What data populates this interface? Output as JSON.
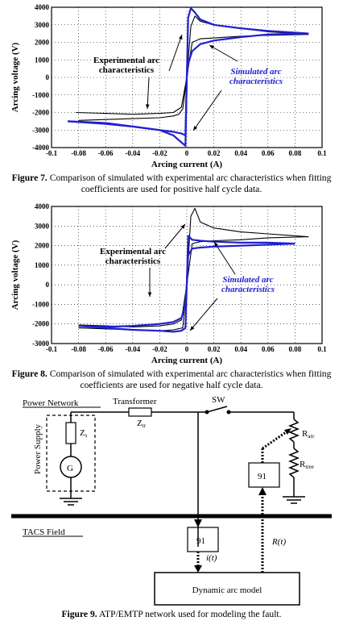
{
  "figure7": {
    "label": "Figure 7.",
    "caption": "Comparison of simulated with experimental arc characteristics when fitting coefficients are used for positive half cycle data.",
    "chart_data": {
      "type": "line",
      "xlabel": "Arcing current (A)",
      "ylabel": "Arcing voltage (V)",
      "xlim": [
        -0.1,
        0.1
      ],
      "ylim": [
        -4000,
        4000
      ],
      "xticks": [
        "-0.1",
        "-0.08",
        "-0.06",
        "-0.04",
        "-0.02",
        "0",
        "0.02",
        "0.04",
        "0.06",
        "0.08",
        "0.1"
      ],
      "yticks": [
        "4000",
        "3000",
        "2000",
        "1000",
        "0",
        "-1000",
        "-2000",
        "-3000",
        "-4000"
      ],
      "grid": true,
      "annotations": [
        {
          "text_lines": [
            "Experimental arc",
            "characteristics"
          ],
          "color": "#000000"
        },
        {
          "text_lines": [
            "Simulated arc",
            "characteristics"
          ],
          "color": "#2020d0"
        }
      ],
      "series": [
        {
          "color": "#000000",
          "x": [
            -0.082,
            -0.06,
            -0.04,
            -0.02,
            -0.01,
            -0.004,
            0,
            0.003,
            0.006,
            0.01,
            0.02,
            0.04,
            0.06,
            0.08,
            0.09
          ],
          "y": [
            -2000,
            -2050,
            -2100,
            -2050,
            -2000,
            -1700,
            0,
            2900,
            3500,
            3200,
            3000,
            2800,
            2600,
            2500,
            2450
          ]
        },
        {
          "color": "#000000",
          "x": [
            0.09,
            0.06,
            0.04,
            0.02,
            0.01,
            0.004,
            0,
            -0.003,
            -0.006,
            -0.01,
            -0.02,
            -0.04,
            -0.06,
            -0.08
          ],
          "y": [
            2450,
            2400,
            2350,
            2250,
            2200,
            2000,
            0,
            -1800,
            -2100,
            -2200,
            -2300,
            -2350,
            -2400,
            -2450
          ]
        },
        {
          "color": "#2020d0",
          "x": [
            -0.088,
            -0.06,
            -0.04,
            -0.02,
            -0.01,
            -0.004,
            -0.001,
            0,
            0.001,
            0.003,
            0.006,
            0.01,
            0.02,
            0.04,
            0.06,
            0.08,
            0.09
          ],
          "y": [
            -2500,
            -2600,
            -2800,
            -3000,
            -3100,
            -3200,
            -3300,
            0,
            3400,
            3950,
            3700,
            3300,
            3000,
            2800,
            2650,
            2550,
            2500
          ]
        },
        {
          "color": "#2020d0",
          "x": [
            0.09,
            0.06,
            0.04,
            0.02,
            0.01,
            0.004,
            0.001,
            0,
            -0.001,
            -0.004,
            -0.01,
            -0.02,
            -0.04,
            -0.06,
            -0.088
          ],
          "y": [
            2500,
            2450,
            2300,
            2100,
            1900,
            1500,
            800,
            0,
            -3900,
            -3700,
            -3300,
            -3000,
            -2800,
            -2650,
            -2500
          ]
        }
      ]
    }
  },
  "figure8": {
    "label": "Figure 8.",
    "caption": "Comparison of simulated with experimental arc characteristics when fitting coefficients are used for negative half cycle data.",
    "chart_data": {
      "type": "line",
      "xlabel": "Arcing current (A)",
      "ylabel": "Arcing voltage (V)",
      "xlim": [
        -0.1,
        0.1
      ],
      "ylim": [
        -3000,
        4000
      ],
      "xticks": [
        "-0.1",
        "-0.08",
        "-0.06",
        "-0.04",
        "-0.02",
        "0",
        "0.02",
        "0.04",
        "0.06",
        "0.08",
        "0.1"
      ],
      "yticks": [
        "4000",
        "3000",
        "2000",
        "1000",
        "0",
        "-1000",
        "-2000",
        "-3000"
      ],
      "grid": true,
      "annotations": [
        {
          "text_lines": [
            "Experimental arc",
            "characteristics"
          ],
          "color": "#000000"
        },
        {
          "text_lines": [
            "Simulated arc",
            "characteristics"
          ],
          "color": "#2020d0"
        }
      ],
      "series": [
        {
          "color": "#000000",
          "x": [
            -0.08,
            -0.06,
            -0.04,
            -0.02,
            -0.01,
            -0.004,
            0,
            0.003,
            0.006,
            0.01,
            0.02,
            0.04,
            0.06,
            0.08,
            0.09
          ],
          "y": [
            -2050,
            -2100,
            -2150,
            -2100,
            -2000,
            -1800,
            0,
            3500,
            3900,
            3200,
            2900,
            2700,
            2600,
            2500,
            2450
          ]
        },
        {
          "color": "#000000",
          "x": [
            0.09,
            0.06,
            0.04,
            0.02,
            0.01,
            0.004,
            0,
            -0.003,
            -0.01,
            -0.02,
            -0.04,
            -0.06,
            -0.08
          ],
          "y": [
            2450,
            2400,
            2300,
            2250,
            2200,
            2100,
            0,
            -2200,
            -2300,
            -2350,
            -2300,
            -2250,
            -2200
          ]
        },
        {
          "color": "#2020d0",
          "x": [
            -0.08,
            -0.06,
            -0.04,
            -0.02,
            -0.01,
            -0.004,
            -0.001,
            0,
            0.001,
            0.004,
            0.01,
            0.02,
            0.04,
            0.06,
            0.08
          ],
          "y": [
            -2100,
            -2150,
            -2100,
            -2000,
            -1900,
            -1700,
            -1000,
            0,
            2500,
            2300,
            2250,
            2200,
            2150,
            2150,
            2100
          ]
        },
        {
          "color": "#2020d0",
          "x": [
            0.08,
            0.06,
            0.04,
            0.02,
            0.01,
            0.004,
            0.001,
            0,
            -0.001,
            -0.004,
            -0.01,
            -0.02,
            -0.04,
            -0.06,
            -0.08
          ],
          "y": [
            2100,
            2050,
            2000,
            1950,
            1900,
            1850,
            1500,
            0,
            -2200,
            -2350,
            -2400,
            -2350,
            -2300,
            -2200,
            -2100
          ]
        }
      ]
    }
  },
  "figure9": {
    "label": "Figure 9.",
    "caption": "ATP/EMTP network used for modeling the fault.",
    "labels": {
      "power_network": "Power Network",
      "transformer": "Transformer",
      "z_tr": "Z",
      "z_tr_sub": "tr",
      "sw": "SW",
      "power_supply": "Power Supply",
      "z_s": "Z",
      "z_s_sub": "s",
      "source": "G",
      "r_arc": "R",
      "r_arc_sub": "arc",
      "r_tree": "R",
      "r_tree_sub": "tree",
      "block_91_right": "91",
      "tacs_field": "TACS Field",
      "block_91_left": "91",
      "i_t": "i(t)",
      "r_t": "R(t)",
      "dynamic_model": "Dynamic arc model"
    }
  }
}
